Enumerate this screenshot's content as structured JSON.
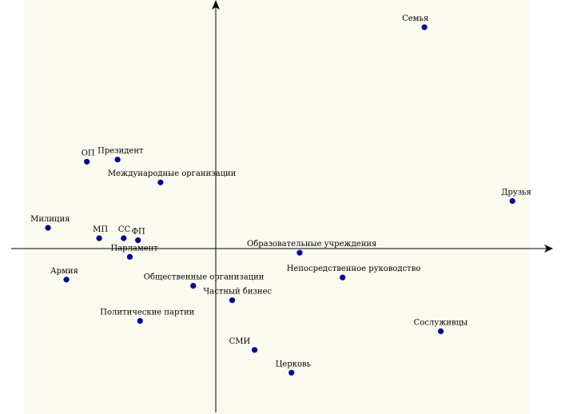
{
  "chart_data": {
    "type": "scatter",
    "title": "",
    "xlabel": "",
    "ylabel": "",
    "grid": false,
    "legend": "none",
    "xlim": [
      -1.0,
      1.6
    ],
    "ylim": [
      -0.8,
      1.2
    ],
    "marker_color": "#0000a8",
    "background_color": "#fbfaf0",
    "points": [
      {
        "label": "Семья",
        "x": 1.02,
        "y": 1.07
      },
      {
        "label": "ОП",
        "x": -0.63,
        "y": 0.42
      },
      {
        "label": "Президент",
        "x": -0.48,
        "y": 0.43
      },
      {
        "label": "Международные организации",
        "x": -0.27,
        "y": 0.32
      },
      {
        "label": "Друзья",
        "x": 1.45,
        "y": 0.23
      },
      {
        "label": "Милиция",
        "x": -0.82,
        "y": 0.1
      },
      {
        "label": "МП",
        "x": -0.57,
        "y": 0.05
      },
      {
        "label": "СС",
        "x": -0.45,
        "y": 0.05
      },
      {
        "label": "ФП",
        "x": -0.38,
        "y": 0.04
      },
      {
        "label": "Образовательные учреждения",
        "x": 0.41,
        "y": -0.02
      },
      {
        "label": "Парламент",
        "x": -0.42,
        "y": -0.04
      },
      {
        "label": "Армия",
        "x": -0.73,
        "y": -0.15
      },
      {
        "label": "Непосредственное руководство",
        "x": 0.62,
        "y": -0.14
      },
      {
        "label": "Общественные организации",
        "x": -0.11,
        "y": -0.18
      },
      {
        "label": "Частный бизнес",
        "x": 0.08,
        "y": -0.25
      },
      {
        "label": "Политические партии",
        "x": -0.37,
        "y": -0.35
      },
      {
        "label": "Сослуживцы",
        "x": 1.1,
        "y": -0.4
      },
      {
        "label": "СМИ",
        "x": 0.19,
        "y": -0.49
      },
      {
        "label": "Церковь",
        "x": 0.37,
        "y": -0.6
      }
    ]
  }
}
